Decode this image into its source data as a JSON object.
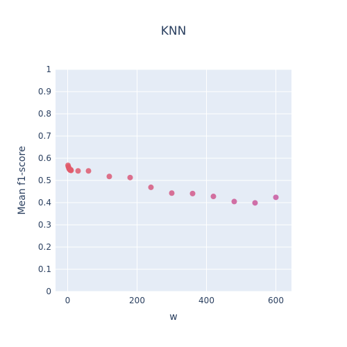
{
  "chart_data": {
    "type": "scatter",
    "title": "KNN",
    "xlabel": "w",
    "ylabel": "Mean f1-score",
    "xlim": [
      -35,
      645
    ],
    "ylim": [
      0,
      1
    ],
    "x_ticks": [
      0,
      200,
      400,
      600
    ],
    "x_tick_labels": [
      "0",
      "200",
      "400",
      "600"
    ],
    "y_ticks": [
      0,
      0.1,
      0.2,
      0.3,
      0.4,
      0.5,
      0.6,
      0.7,
      0.8,
      0.9,
      1
    ],
    "y_tick_labels": [
      "0",
      "0.1",
      "0.2",
      "0.3",
      "0.4",
      "0.5",
      "0.6",
      "0.7",
      "0.8",
      "0.9",
      "1"
    ],
    "grid": true,
    "legend": "none",
    "colors": {
      "plot_bg": "#e5ecf6",
      "grid": "#ffffff",
      "text": "#2a3f5f",
      "marker_start": "#e05a6a",
      "marker_end": "#c8589f"
    },
    "points": [
      {
        "x": 1,
        "y": 0.568
      },
      {
        "x": 2,
        "y": 0.562
      },
      {
        "x": 3,
        "y": 0.558
      },
      {
        "x": 4,
        "y": 0.553
      },
      {
        "x": 5,
        "y": 0.551
      },
      {
        "x": 6,
        "y": 0.549
      },
      {
        "x": 7,
        "y": 0.547
      },
      {
        "x": 8,
        "y": 0.546
      },
      {
        "x": 9,
        "y": 0.548
      },
      {
        "x": 10,
        "y": 0.545
      },
      {
        "x": 30,
        "y": 0.543
      },
      {
        "x": 60,
        "y": 0.543
      },
      {
        "x": 120,
        "y": 0.518
      },
      {
        "x": 180,
        "y": 0.513
      },
      {
        "x": 240,
        "y": 0.469
      },
      {
        "x": 300,
        "y": 0.443
      },
      {
        "x": 360,
        "y": 0.441
      },
      {
        "x": 420,
        "y": 0.428
      },
      {
        "x": 480,
        "y": 0.405
      },
      {
        "x": 540,
        "y": 0.399
      },
      {
        "x": 600,
        "y": 0.424
      }
    ]
  }
}
